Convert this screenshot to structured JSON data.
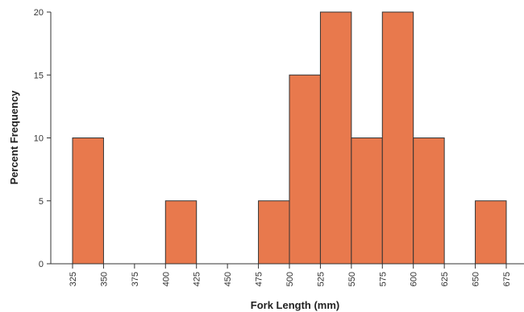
{
  "chart_data": {
    "type": "bar",
    "title": "",
    "xlabel": "Fork Length (mm)",
    "ylabel": "Percent Frequency",
    "bin_edges": [
      325,
      350,
      375,
      400,
      425,
      450,
      475,
      500,
      525,
      550,
      575,
      600,
      625,
      650,
      675
    ],
    "x_ticks": [
      "325",
      "350",
      "375",
      "400",
      "425",
      "450",
      "475",
      "500",
      "525",
      "550",
      "575",
      "600",
      "625",
      "650",
      "675"
    ],
    "values": [
      10,
      0,
      0,
      5,
      0,
      0,
      5,
      15,
      20,
      10,
      20,
      10,
      0,
      5
    ],
    "ylim": [
      0,
      20
    ],
    "y_ticks": [
      "0",
      "5",
      "10",
      "15",
      "20"
    ],
    "grid": false,
    "bar_color": "#e8794d",
    "bar_edge_color": "#333333"
  }
}
